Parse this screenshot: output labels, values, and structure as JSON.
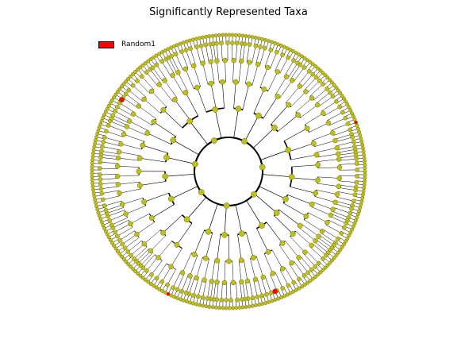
{
  "title": "Significantly Represented Taxa",
  "legend": [
    {
      "label": "Random1",
      "color": "#ff0000"
    }
  ],
  "colors": {
    "node_default": "#bfbf1c",
    "node_highlight": "#ff0000",
    "edge": "#000000",
    "node_outline": "#6f6f10"
  }
}
